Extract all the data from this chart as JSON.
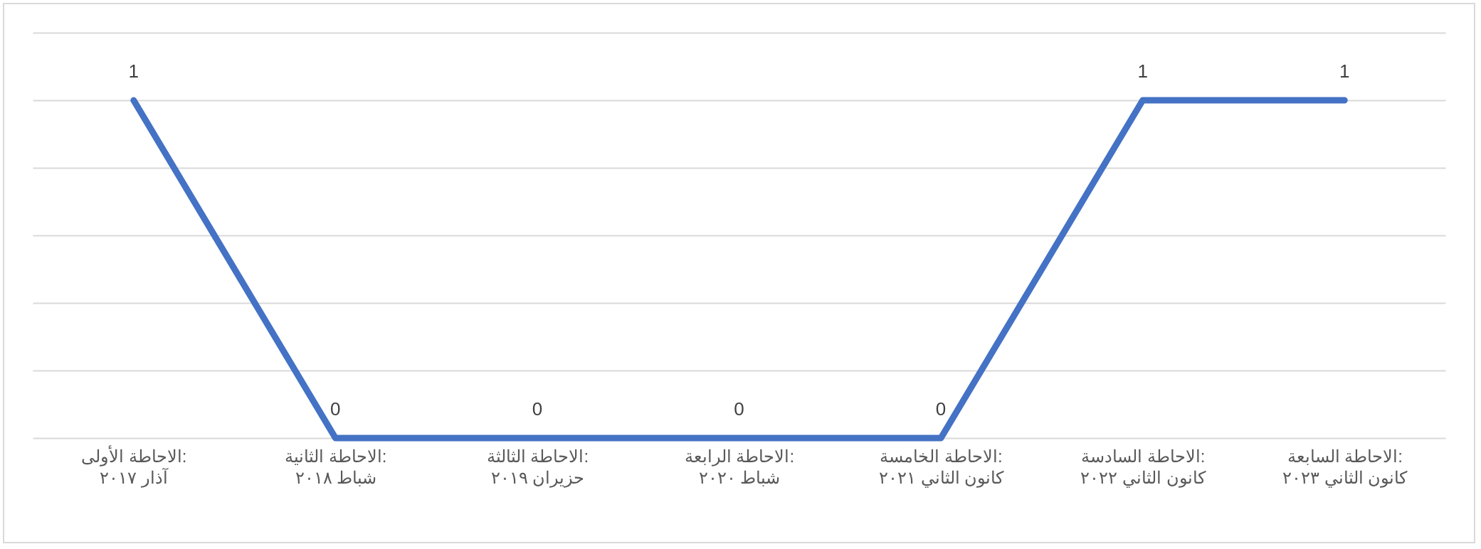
{
  "chart_data": {
    "type": "line",
    "categories": [
      "الاحاطة الأولى: آذار ٢٠١٧",
      "الاحاطة الثانية: شباط ٢٠١٨",
      "الاحاطة الثالثة: حزيران ٢٠١٩",
      "الاحاطة الرابعة: شباط ٢٠٢٠",
      "الاحاطة الخامسة: كانون الثاني ٢٠٢١",
      "الاحاطة السادسة: كانون الثاني ٢٠٢٢",
      "الاحاطة السابعة: كانون الثاني ٢٠٢٣"
    ],
    "series": [
      {
        "color": "#4472c4",
        "values": [
          1,
          0,
          0,
          0,
          0,
          1,
          1
        ]
      }
    ],
    "ylim": [
      0,
      1.2
    ],
    "yticks": [
      {
        "value": 0,
        "label": null
      },
      {
        "value": 0.2,
        "label": null
      },
      {
        "value": 0.4,
        "label": null
      },
      {
        "value": 0.6,
        "label": null
      },
      {
        "value": 0.8,
        "label": null
      },
      {
        "value": 1,
        "label": null
      },
      {
        "value": 1.2,
        "label": null
      }
    ],
    "tick_labels": "x",
    "grid": "y",
    "data_labels": true,
    "marker": "none",
    "line_style": "solid"
  }
}
